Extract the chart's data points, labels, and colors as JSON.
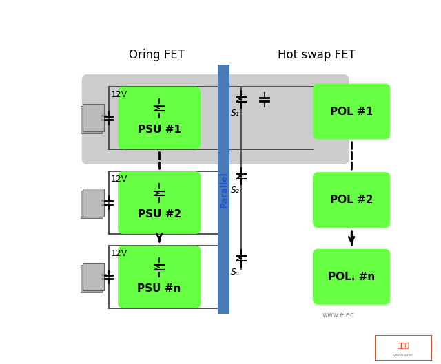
{
  "bg_color": "#ffffff",
  "green_color": "#66ff44",
  "gray_bg": "#cccccc",
  "gray_bg2": "#dddddd",
  "blue_bar_color": "#4a7ab5",
  "line_color": "#444444",
  "psu_labels": [
    "PSU #1",
    "PSU #2",
    "PSU #n"
  ],
  "pol_labels": [
    "POL #1",
    "POL #2",
    "POL. #n"
  ],
  "switch_labels": [
    "S₁",
    "S₂",
    "Sₙ"
  ],
  "voltage_label": "12V",
  "oring_label": "Oring FET",
  "hotswap_label": "Hot swap FET",
  "parallel_label": "Parallel",
  "watermark": "www.elec",
  "fig_w": 6.4,
  "fig_h": 5.29,
  "dpi": 100
}
